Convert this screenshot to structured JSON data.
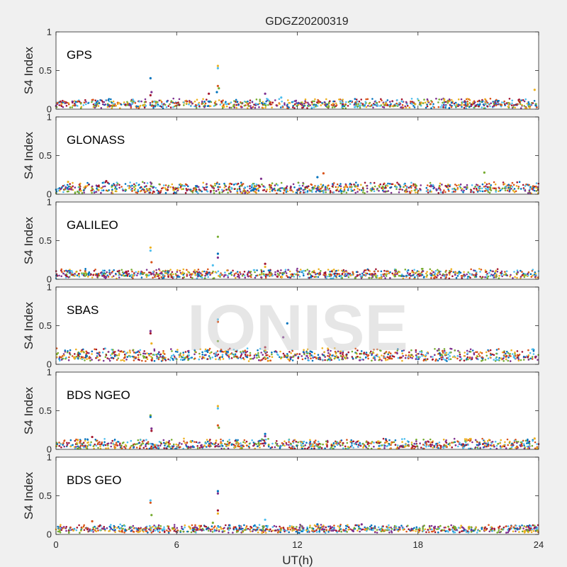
{
  "figure": {
    "title": "GDGZ20200319",
    "xlabel": "UT(h)",
    "watermark": "IONISE",
    "background": "#f0f0f0",
    "axes_background": "#ffffff"
  },
  "series_colors": [
    "#0072bd",
    "#d95319",
    "#edb120",
    "#7e2f8e",
    "#77ac30",
    "#4dbeee",
    "#a2142f"
  ],
  "chart_data": [
    {
      "type": "scatter",
      "panel_label": "GPS",
      "ylabel": "S4 Index",
      "xlim": [
        0,
        24
      ],
      "ylim": [
        0,
        1
      ],
      "xticks": [
        0,
        6,
        12,
        18,
        24
      ],
      "yticks": [
        0,
        0.5,
        1
      ],
      "ytick_labels": [
        "0",
        "0.5",
        "1"
      ],
      "baseline_range": [
        0.03,
        0.12
      ],
      "spikes": [
        {
          "x": 4.7,
          "y": 0.4
        },
        {
          "x": 4.75,
          "y": 0.22
        },
        {
          "x": 4.7,
          "y": 0.18
        },
        {
          "x": 8.05,
          "y": 0.56
        },
        {
          "x": 8.05,
          "y": 0.53
        },
        {
          "x": 8.05,
          "y": 0.3
        },
        {
          "x": 8.1,
          "y": 0.27
        },
        {
          "x": 8.0,
          "y": 0.22
        },
        {
          "x": 10.4,
          "y": 0.2
        },
        {
          "x": 7.6,
          "y": 0.2
        },
        {
          "x": 23.8,
          "y": 0.25
        },
        {
          "x": 11.2,
          "y": 0.15
        }
      ]
    },
    {
      "type": "scatter",
      "panel_label": "GLONASS",
      "ylabel": "S4 Index",
      "xlim": [
        0,
        24
      ],
      "ylim": [
        0,
        1
      ],
      "xticks": [
        0,
        6,
        12,
        18,
        24
      ],
      "yticks": [
        0,
        0.5,
        1
      ],
      "ytick_labels": [
        "0",
        "0.5",
        "1"
      ],
      "baseline_range": [
        0.03,
        0.14
      ],
      "spikes": [
        {
          "x": 13.3,
          "y": 0.27
        },
        {
          "x": 21.3,
          "y": 0.28
        },
        {
          "x": 13.0,
          "y": 0.22
        },
        {
          "x": 10.2,
          "y": 0.2
        },
        {
          "x": 2.5,
          "y": 0.17
        },
        {
          "x": 0.6,
          "y": 0.16
        }
      ]
    },
    {
      "type": "scatter",
      "panel_label": "GALILEO",
      "ylabel": "S4 Index",
      "xlim": [
        0,
        24
      ],
      "ylim": [
        0,
        1
      ],
      "xticks": [
        0,
        6,
        12,
        18,
        24
      ],
      "yticks": [
        0,
        0.5,
        1
      ],
      "ytick_labels": [
        "0",
        "0.5",
        "1"
      ],
      "baseline_range": [
        0.03,
        0.12
      ],
      "spikes": [
        {
          "x": 4.7,
          "y": 0.41
        },
        {
          "x": 4.7,
          "y": 0.37
        },
        {
          "x": 4.75,
          "y": 0.22
        },
        {
          "x": 8.05,
          "y": 0.55
        },
        {
          "x": 8.05,
          "y": 0.33
        },
        {
          "x": 8.05,
          "y": 0.28
        },
        {
          "x": 10.4,
          "y": 0.2
        },
        {
          "x": 10.4,
          "y": 0.16
        },
        {
          "x": 7.8,
          "y": 0.18
        }
      ]
    },
    {
      "type": "scatter",
      "panel_label": "SBAS",
      "ylabel": "S4 Index",
      "xlim": [
        0,
        24
      ],
      "ylim": [
        0,
        1
      ],
      "xticks": [
        0,
        6,
        12,
        18,
        24
      ],
      "yticks": [
        0,
        0.5,
        1
      ],
      "ytick_labels": [
        "0",
        "0.5",
        "1"
      ],
      "baseline_range": [
        0.06,
        0.19
      ],
      "spikes": [
        {
          "x": 4.7,
          "y": 0.43
        },
        {
          "x": 4.7,
          "y": 0.4
        },
        {
          "x": 4.75,
          "y": 0.27
        },
        {
          "x": 8.05,
          "y": 0.58
        },
        {
          "x": 8.05,
          "y": 0.55
        },
        {
          "x": 8.05,
          "y": 0.3
        },
        {
          "x": 11.5,
          "y": 0.53
        },
        {
          "x": 11.3,
          "y": 0.35
        },
        {
          "x": 10.4,
          "y": 0.22
        },
        {
          "x": 10.4,
          "y": 0.18
        }
      ]
    },
    {
      "type": "scatter",
      "panel_label": "BDS NGEO",
      "ylabel": "S4 Index",
      "xlim": [
        0,
        24
      ],
      "ylim": [
        0,
        1
      ],
      "xticks": [
        0,
        6,
        12,
        18,
        24
      ],
      "yticks": [
        0,
        0.5,
        1
      ],
      "ytick_labels": [
        "0",
        "0.5",
        "1"
      ],
      "baseline_range": [
        0.02,
        0.12
      ],
      "spikes": [
        {
          "x": 4.7,
          "y": 0.44
        },
        {
          "x": 4.7,
          "y": 0.42
        },
        {
          "x": 4.75,
          "y": 0.27
        },
        {
          "x": 4.75,
          "y": 0.24
        },
        {
          "x": 8.05,
          "y": 0.56
        },
        {
          "x": 8.05,
          "y": 0.53
        },
        {
          "x": 8.05,
          "y": 0.31
        },
        {
          "x": 8.1,
          "y": 0.28
        },
        {
          "x": 10.4,
          "y": 0.2
        },
        {
          "x": 10.4,
          "y": 0.17
        },
        {
          "x": 1.8,
          "y": 0.16
        },
        {
          "x": 23.8,
          "y": 0.14
        }
      ]
    },
    {
      "type": "scatter",
      "panel_label": "BDS GEO",
      "ylabel": "S4 Index",
      "xlim": [
        0,
        24
      ],
      "ylim": [
        0,
        1
      ],
      "xticks": [
        0,
        6,
        12,
        18,
        24
      ],
      "yticks": [
        0,
        0.5,
        1
      ],
      "ytick_labels": [
        "0",
        "0.5",
        "1"
      ],
      "baseline_range": [
        0.04,
        0.11
      ],
      "spikes": [
        {
          "x": 4.7,
          "y": 0.44
        },
        {
          "x": 4.7,
          "y": 0.41
        },
        {
          "x": 4.75,
          "y": 0.25
        },
        {
          "x": 8.05,
          "y": 0.56
        },
        {
          "x": 8.05,
          "y": 0.53
        },
        {
          "x": 8.05,
          "y": 0.31
        },
        {
          "x": 8.05,
          "y": 0.27
        },
        {
          "x": 10.4,
          "y": 0.19
        },
        {
          "x": 1.8,
          "y": 0.17
        },
        {
          "x": 7.8,
          "y": 0.15
        },
        {
          "x": 13.0,
          "y": 0.13
        },
        {
          "x": 15.2,
          "y": 0.13
        }
      ]
    }
  ]
}
